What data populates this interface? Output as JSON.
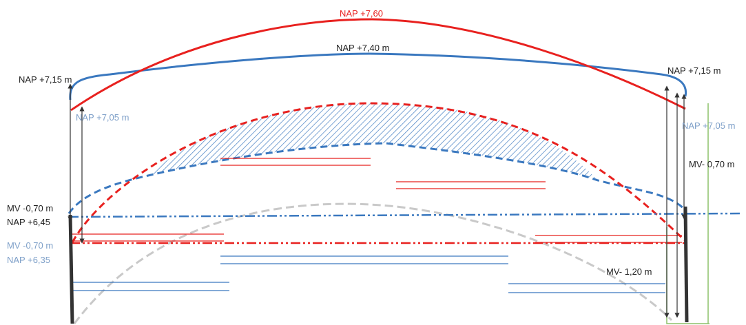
{
  "labels": {
    "top_red": "NAP +7,60",
    "top_blue": "NAP +7,40 m",
    "left_top": "NAP +7,15 m",
    "right_top": "NAP +7,15 m",
    "left_inner": "NAP +7,05 m",
    "right_inner": "NAP +7,05 m",
    "left_mv1": "MV -0,70 m",
    "left_nap1": "NAP +6,45",
    "left_mv2": "MV -0,70 m",
    "left_nap2": "NAP +6,35",
    "right_mv1": "MV- 0,70 m",
    "right_mv2": "MV- 1,20 m"
  },
  "colors": {
    "red": "#e8211f",
    "blue": "#3a78bf",
    "light_blue": "#7d9fc8",
    "gray": "#c9c9c9",
    "green": "#8cc069",
    "dark": "#333333",
    "text": "#222222"
  }
}
